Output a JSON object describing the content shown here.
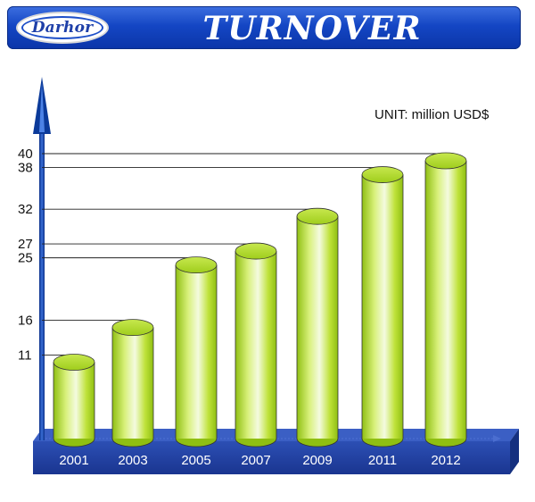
{
  "header": {
    "logo_text": "Darhor",
    "title": "TURNOVER"
  },
  "colors": {
    "banner": "#1446c4",
    "bar_light": "#f4fbe0",
    "bar_mid": "#bfe23a",
    "bar_dark": "#8fbf12",
    "bar_top": "#b2db2c",
    "base": "#1f3c9e",
    "axis": "#0b2f8a"
  },
  "chart_data": {
    "type": "bar",
    "unit_label": "UNIT: million USD$",
    "categories": [
      "2001",
      "2003",
      "2005",
      "2007",
      "2009",
      "2011",
      "2012"
    ],
    "values": [
      11,
      16,
      25,
      27,
      32,
      38,
      40
    ],
    "yticks": [
      11,
      16,
      25,
      27,
      32,
      38,
      40
    ],
    "ylim": [
      0,
      40
    ],
    "grid": false,
    "style": "3d-cylinder"
  }
}
